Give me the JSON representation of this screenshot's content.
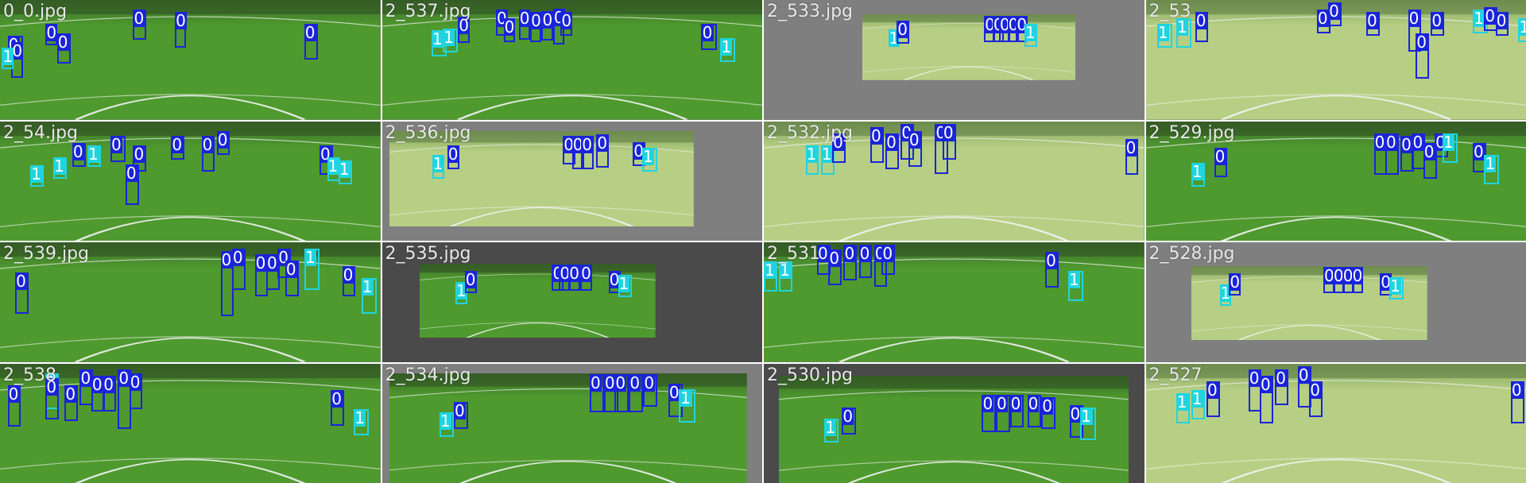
{
  "colors": {
    "class_0": "#1a24d8",
    "class_1": "#1fd4e0",
    "gray_light": "#7f7f7f",
    "gray_dark": "#4a4a4a",
    "grass_bright": "#4e9a2e",
    "grass_pale": "#b7cf84",
    "line": "#f2f2f2"
  },
  "classes": {
    "c0": "0",
    "c1": "1"
  },
  "tiles": [
    {
      "label": "0_0.jpg",
      "bg": "gray_light",
      "style": "bright",
      "frame": [
        0,
        0,
        1,
        1
      ],
      "boxes": [
        [
          "c0",
          0.02,
          0.3,
          0.04,
          0.2
        ],
        [
          "c0",
          0.03,
          0.35,
          0.03,
          0.3
        ],
        [
          "c1",
          0.005,
          0.4,
          0.03,
          0.18
        ],
        [
          "c0",
          0.12,
          0.2,
          0.03,
          0.18
        ],
        [
          "c0",
          0.15,
          0.28,
          0.035,
          0.25
        ],
        [
          "c0",
          0.35,
          0.08,
          0.035,
          0.25
        ],
        [
          "c0",
          0.46,
          0.1,
          0.03,
          0.3
        ],
        [
          "c0",
          0.8,
          0.2,
          0.035,
          0.3
        ]
      ]
    },
    {
      "label": "2_537.jpg",
      "bg": "gray_light",
      "style": "bright",
      "frame": [
        0,
        0,
        1,
        1
      ],
      "boxes": [
        [
          "c1",
          0.13,
          0.25,
          0.04,
          0.22
        ],
        [
          "c1",
          0.16,
          0.24,
          0.04,
          0.2
        ],
        [
          "c0",
          0.2,
          0.14,
          0.03,
          0.22
        ],
        [
          "c0",
          0.3,
          0.08,
          0.03,
          0.22
        ],
        [
          "c0",
          0.32,
          0.15,
          0.03,
          0.2
        ],
        [
          "c0",
          0.36,
          0.08,
          0.03,
          0.25
        ],
        [
          "c0",
          0.39,
          0.1,
          0.03,
          0.25
        ],
        [
          "c0",
          0.42,
          0.09,
          0.03,
          0.25
        ],
        [
          "c0",
          0.45,
          0.07,
          0.03,
          0.3
        ],
        [
          "c0",
          0.47,
          0.1,
          0.03,
          0.2
        ],
        [
          "c0",
          0.84,
          0.2,
          0.04,
          0.22
        ],
        [
          "c1",
          0.89,
          0.32,
          0.04,
          0.2
        ]
      ]
    },
    {
      "label": "2_533.jpg",
      "bg": "gray_light",
      "style": "pale",
      "frame": [
        0.26,
        0.12,
        0.56,
        0.55
      ],
      "boxes": [
        [
          "c1",
          0.12,
          0.23,
          0.05,
          0.25
        ],
        [
          "c0",
          0.16,
          0.1,
          0.06,
          0.35
        ],
        [
          "c0",
          0.57,
          0.02,
          0.04,
          0.4
        ],
        [
          "c0",
          0.61,
          0.02,
          0.04,
          0.4
        ],
        [
          "c0",
          0.64,
          0.02,
          0.04,
          0.4
        ],
        [
          "c0",
          0.68,
          0.02,
          0.04,
          0.4
        ],
        [
          "c0",
          0.72,
          0.02,
          0.04,
          0.4
        ],
        [
          "c1",
          0.76,
          0.15,
          0.06,
          0.35
        ]
      ]
    },
    {
      "label": "2_53",
      "bg": "gray_light",
      "style": "pale",
      "frame": [
        0,
        0,
        1,
        1
      ],
      "boxes": [
        [
          "c1",
          0.03,
          0.2,
          0.04,
          0.2
        ],
        [
          "c1",
          0.08,
          0.15,
          0.04,
          0.25
        ],
        [
          "c0",
          0.13,
          0.1,
          0.035,
          0.25
        ],
        [
          "c0",
          0.45,
          0.08,
          0.035,
          0.2
        ],
        [
          "c0",
          0.48,
          0.02,
          0.035,
          0.2
        ],
        [
          "c0",
          0.58,
          0.1,
          0.035,
          0.2
        ],
        [
          "c0",
          0.69,
          0.08,
          0.035,
          0.35
        ],
        [
          "c0",
          0.71,
          0.28,
          0.035,
          0.38
        ],
        [
          "c0",
          0.75,
          0.1,
          0.035,
          0.2
        ],
        [
          "c1",
          0.86,
          0.08,
          0.04,
          0.2
        ],
        [
          "c0",
          0.89,
          0.06,
          0.035,
          0.2
        ],
        [
          "c0",
          0.92,
          0.1,
          0.035,
          0.2
        ],
        [
          "c1",
          0.98,
          0.15,
          0.03,
          0.2
        ]
      ]
    },
    {
      "label": "2_54.jpg",
      "bg": "gray_light",
      "style": "bright",
      "frame": [
        0,
        0,
        1,
        1
      ],
      "boxes": [
        [
          "c1",
          0.08,
          0.37,
          0.035,
          0.18
        ],
        [
          "c1",
          0.14,
          0.3,
          0.035,
          0.18
        ],
        [
          "c0",
          0.19,
          0.18,
          0.035,
          0.2
        ],
        [
          "c1",
          0.23,
          0.2,
          0.035,
          0.18
        ],
        [
          "c0",
          0.29,
          0.12,
          0.04,
          0.22
        ],
        [
          "c0",
          0.35,
          0.2,
          0.035,
          0.22
        ],
        [
          "c0",
          0.33,
          0.36,
          0.035,
          0.34
        ],
        [
          "c0",
          0.45,
          0.12,
          0.035,
          0.2
        ],
        [
          "c0",
          0.53,
          0.12,
          0.035,
          0.3
        ],
        [
          "c0",
          0.57,
          0.08,
          0.035,
          0.2
        ],
        [
          "c0",
          0.84,
          0.2,
          0.035,
          0.25
        ],
        [
          "c1",
          0.86,
          0.3,
          0.035,
          0.2
        ],
        [
          "c1",
          0.89,
          0.33,
          0.035,
          0.2
        ]
      ]
    },
    {
      "label": "2_536.jpg",
      "bg": "gray_light",
      "style": "pale",
      "frame": [
        0.02,
        0.08,
        0.8,
        0.8
      ],
      "boxes": [
        [
          "c1",
          0.14,
          0.25,
          0.04,
          0.25
        ],
        [
          "c0",
          0.19,
          0.15,
          0.04,
          0.25
        ],
        [
          "c0",
          0.57,
          0.05,
          0.04,
          0.3
        ],
        [
          "c0",
          0.6,
          0.05,
          0.04,
          0.35
        ],
        [
          "c0",
          0.63,
          0.05,
          0.04,
          0.35
        ],
        [
          "c0",
          0.68,
          0.04,
          0.04,
          0.35
        ],
        [
          "c0",
          0.8,
          0.12,
          0.04,
          0.25
        ],
        [
          "c1",
          0.83,
          0.18,
          0.05,
          0.25
        ]
      ]
    },
    {
      "label": "2_532.jpg",
      "bg": "gray_light",
      "style": "pale",
      "frame": [
        0,
        0,
        1,
        1
      ],
      "boxes": [
        [
          "c1",
          0.11,
          0.2,
          0.035,
          0.25
        ],
        [
          "c1",
          0.15,
          0.2,
          0.035,
          0.25
        ],
        [
          "c0",
          0.18,
          0.1,
          0.035,
          0.25
        ],
        [
          "c0",
          0.28,
          0.05,
          0.035,
          0.3
        ],
        [
          "c0",
          0.32,
          0.1,
          0.035,
          0.3
        ],
        [
          "c0",
          0.36,
          0.02,
          0.035,
          0.3
        ],
        [
          "c0",
          0.38,
          0.08,
          0.035,
          0.3
        ],
        [
          "c0",
          0.45,
          0.02,
          0.035,
          0.42
        ],
        [
          "c0",
          0.47,
          0.02,
          0.035,
          0.3
        ],
        [
          "c0",
          0.95,
          0.15,
          0.035,
          0.3
        ]
      ]
    },
    {
      "label": "2_529.jpg",
      "bg": "gray_light",
      "style": "bright",
      "frame": [
        0,
        0,
        1,
        1
      ],
      "boxes": [
        [
          "c1",
          0.12,
          0.35,
          0.035,
          0.2
        ],
        [
          "c0",
          0.18,
          0.22,
          0.035,
          0.25
        ],
        [
          "c0",
          0.6,
          0.1,
          0.035,
          0.35
        ],
        [
          "c0",
          0.63,
          0.1,
          0.035,
          0.35
        ],
        [
          "c0",
          0.67,
          0.12,
          0.035,
          0.3
        ],
        [
          "c0",
          0.7,
          0.1,
          0.035,
          0.3
        ],
        [
          "c0",
          0.73,
          0.18,
          0.035,
          0.3
        ],
        [
          "c0",
          0.76,
          0.1,
          0.035,
          0.2
        ],
        [
          "c1",
          0.78,
          0.1,
          0.04,
          0.25
        ],
        [
          "c0",
          0.86,
          0.18,
          0.035,
          0.25
        ],
        [
          "c1",
          0.89,
          0.28,
          0.04,
          0.25
        ]
      ]
    },
    {
      "label": "2_539.jpg",
      "bg": "gray_light",
      "style": "bright",
      "frame": [
        0,
        0,
        1,
        1
      ],
      "boxes": [
        [
          "c0",
          0.04,
          0.25,
          0.035,
          0.35
        ],
        [
          "c0",
          0.58,
          0.07,
          0.035,
          0.55
        ],
        [
          "c0",
          0.61,
          0.05,
          0.035,
          0.35
        ],
        [
          "c0",
          0.67,
          0.1,
          0.035,
          0.35
        ],
        [
          "c0",
          0.7,
          0.1,
          0.035,
          0.3
        ],
        [
          "c0",
          0.73,
          0.05,
          0.035,
          0.25
        ],
        [
          "c0",
          0.75,
          0.15,
          0.035,
          0.3
        ],
        [
          "c1",
          0.8,
          0.05,
          0.04,
          0.35
        ],
        [
          "c0",
          0.9,
          0.2,
          0.035,
          0.25
        ],
        [
          "c1",
          0.95,
          0.3,
          0.04,
          0.3
        ]
      ]
    },
    {
      "label": "2_535.jpg",
      "bg": "gray_dark",
      "style": "bright",
      "frame": [
        0.1,
        0.18,
        0.62,
        0.62
      ],
      "boxes": [
        [
          "c1",
          0.15,
          0.25,
          0.05,
          0.3
        ],
        [
          "c0",
          0.19,
          0.1,
          0.05,
          0.3
        ],
        [
          "c0",
          0.56,
          0.01,
          0.05,
          0.35
        ],
        [
          "c0",
          0.59,
          0.01,
          0.05,
          0.35
        ],
        [
          "c0",
          0.63,
          0.01,
          0.05,
          0.35
        ],
        [
          "c0",
          0.68,
          0.01,
          0.05,
          0.35
        ],
        [
          "c0",
          0.8,
          0.1,
          0.05,
          0.3
        ],
        [
          "c1",
          0.84,
          0.15,
          0.06,
          0.3
        ]
      ]
    },
    {
      "label": "2_531",
      "bg": "gray_light",
      "style": "bright",
      "frame": [
        0,
        0,
        1,
        1
      ],
      "boxes": [
        [
          "c1",
          0,
          0.16,
          0.035,
          0.25
        ],
        [
          "c1",
          0.04,
          0.16,
          0.035,
          0.25
        ],
        [
          "c0",
          0.14,
          0.02,
          0.035,
          0.25
        ],
        [
          "c0",
          0.17,
          0.06,
          0.035,
          0.3
        ],
        [
          "c0",
          0.21,
          0.02,
          0.035,
          0.3
        ],
        [
          "c0",
          0.25,
          0.02,
          0.035,
          0.28
        ],
        [
          "c0",
          0.29,
          0.02,
          0.035,
          0.35
        ],
        [
          "c0",
          0.31,
          0.02,
          0.035,
          0.25
        ],
        [
          "c0",
          0.74,
          0.08,
          0.035,
          0.3
        ],
        [
          "c1",
          0.8,
          0.24,
          0.04,
          0.25
        ]
      ]
    },
    {
      "label": "2_528.jpg",
      "bg": "gray_light",
      "style": "pale",
      "frame": [
        0.12,
        0.2,
        0.62,
        0.62
      ],
      "boxes": [
        [
          "c1",
          0.12,
          0.25,
          0.05,
          0.28
        ],
        [
          "c0",
          0.16,
          0.1,
          0.05,
          0.3
        ],
        [
          "c0",
          0.56,
          0.01,
          0.05,
          0.35
        ],
        [
          "c0",
          0.6,
          0.01,
          0.05,
          0.35
        ],
        [
          "c0",
          0.64,
          0.01,
          0.05,
          0.35
        ],
        [
          "c0",
          0.68,
          0.01,
          0.05,
          0.35
        ],
        [
          "c0",
          0.8,
          0.1,
          0.05,
          0.3
        ],
        [
          "c1",
          0.84,
          0.15,
          0.06,
          0.3
        ]
      ]
    },
    {
      "label": "2_538",
      "bg": "gray_light",
      "style": "bright",
      "frame": [
        0,
        0,
        1,
        1
      ],
      "boxes": [
        [
          "c0",
          0.02,
          0.18,
          0.035,
          0.35
        ],
        [
          "c1",
          0.12,
          0.08,
          0.035,
          0.3
        ],
        [
          "c0",
          0.12,
          0.12,
          0.035,
          0.35
        ],
        [
          "c0",
          0.17,
          0.18,
          0.035,
          0.3
        ],
        [
          "c0",
          0.21,
          0.05,
          0.035,
          0.3
        ],
        [
          "c0",
          0.24,
          0.1,
          0.035,
          0.3
        ],
        [
          "c0",
          0.27,
          0.1,
          0.035,
          0.3
        ],
        [
          "c0",
          0.31,
          0.05,
          0.035,
          0.5
        ],
        [
          "c0",
          0.34,
          0.08,
          0.035,
          0.3
        ],
        [
          "c0",
          0.87,
          0.22,
          0.035,
          0.3
        ],
        [
          "c1",
          0.93,
          0.38,
          0.04,
          0.22
        ]
      ]
    },
    {
      "label": "2_534.jpg",
      "bg": "gray_light",
      "style": "bright",
      "frame": [
        0.02,
        0.08,
        0.94,
        0.92
      ],
      "boxes": [
        [
          "c1",
          0.14,
          0.36,
          0.04,
          0.22
        ],
        [
          "c0",
          0.18,
          0.26,
          0.04,
          0.25
        ],
        [
          "c0",
          0.56,
          0.01,
          0.04,
          0.35
        ],
        [
          "c0",
          0.6,
          0.01,
          0.04,
          0.35
        ],
        [
          "c0",
          0.63,
          0.01,
          0.04,
          0.35
        ],
        [
          "c0",
          0.67,
          0.01,
          0.04,
          0.35
        ],
        [
          "c0",
          0.71,
          0.01,
          0.04,
          0.3
        ],
        [
          "c0",
          0.78,
          0.1,
          0.04,
          0.3
        ],
        [
          "c1",
          0.81,
          0.15,
          0.045,
          0.3
        ]
      ]
    },
    {
      "label": "2_530.jpg",
      "bg": "gray_dark",
      "style": "bright",
      "frame": [
        0.04,
        0.1,
        0.92,
        0.9
      ],
      "boxes": [
        [
          "c1",
          0.13,
          0.4,
          0.04,
          0.22
        ],
        [
          "c0",
          0.18,
          0.3,
          0.04,
          0.25
        ],
        [
          "c0",
          0.58,
          0.18,
          0.04,
          0.35
        ],
        [
          "c0",
          0.62,
          0.18,
          0.04,
          0.35
        ],
        [
          "c0",
          0.66,
          0.18,
          0.04,
          0.3
        ],
        [
          "c0",
          0.71,
          0.18,
          0.04,
          0.3
        ],
        [
          "c0",
          0.75,
          0.2,
          0.04,
          0.3
        ],
        [
          "c0",
          0.83,
          0.28,
          0.04,
          0.3
        ],
        [
          "c1",
          0.86,
          0.3,
          0.045,
          0.3
        ]
      ]
    },
    {
      "label": "2_527",
      "bg": "gray_light",
      "style": "pale",
      "frame": [
        0,
        0,
        1,
        1
      ],
      "boxes": [
        [
          "c1",
          0.08,
          0.25,
          0.035,
          0.25
        ],
        [
          "c1",
          0.12,
          0.22,
          0.035,
          0.25
        ],
        [
          "c0",
          0.16,
          0.15,
          0.035,
          0.3
        ],
        [
          "c0",
          0.27,
          0.05,
          0.035,
          0.35
        ],
        [
          "c0",
          0.3,
          0.1,
          0.035,
          0.4
        ],
        [
          "c0",
          0.34,
          0.05,
          0.035,
          0.3
        ],
        [
          "c0",
          0.4,
          0.02,
          0.035,
          0.35
        ],
        [
          "c0",
          0.43,
          0.15,
          0.035,
          0.3
        ],
        [
          "c0",
          0.96,
          0.15,
          0.035,
          0.35
        ]
      ]
    }
  ]
}
